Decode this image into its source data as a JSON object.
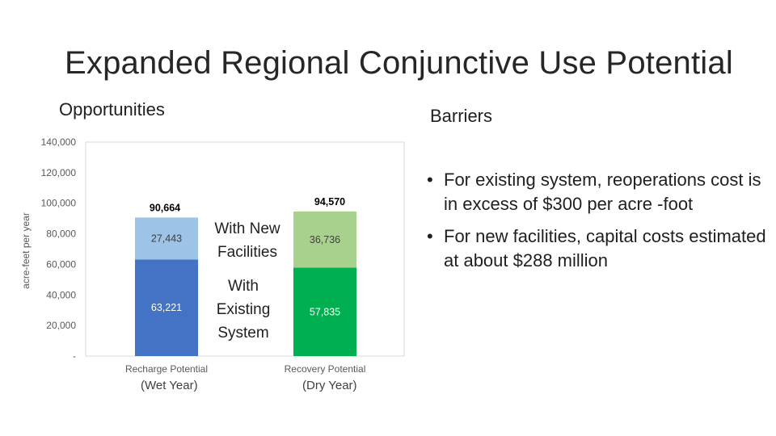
{
  "slide": {
    "title": "Expanded Regional Conjunctive Use Potential",
    "opportunities_heading": "Opportunities",
    "barriers_heading": "Barriers",
    "note_new": "With New Facilities",
    "note_existing": "With Existing System",
    "sub_wet": "(Wet Year)",
    "sub_dry": "(Dry Year)",
    "bullet_marker": "•",
    "bullets": [
      "For existing system, reoperations cost is in excess of $300 per acre -foot",
      "For new facilities, capital costs estimated at about $288 million"
    ]
  },
  "chart_data": {
    "type": "bar",
    "stacked": true,
    "categories": [
      "Recharge Potential",
      "Recovery Potential"
    ],
    "ylabel": "acre-feet per year",
    "ylim": [
      0,
      140000
    ],
    "yticks": [
      0,
      20000,
      40000,
      60000,
      80000,
      100000,
      120000,
      140000
    ],
    "ytick_labels": [
      "-",
      "20,000",
      "40,000",
      "60,000",
      "80,000",
      "100,000",
      "120,000",
      "140,000"
    ],
    "grid": false,
    "series": [
      {
        "values": [
          63221,
          57835
        ],
        "labels": [
          "63,221",
          "57,835"
        ],
        "colors": [
          "#4472c4",
          "#00b050"
        ],
        "label_colors": [
          "#ffffff",
          "#ffffff"
        ]
      },
      {
        "values": [
          27443,
          36736
        ],
        "labels": [
          "27,443",
          "36,736"
        ],
        "colors": [
          "#9dc3e6",
          "#a9d18e"
        ],
        "label_colors": [
          "#404040",
          "#404040"
        ]
      }
    ],
    "totals": [
      90664,
      94570
    ],
    "total_labels": [
      "90,664",
      "94,570"
    ]
  }
}
